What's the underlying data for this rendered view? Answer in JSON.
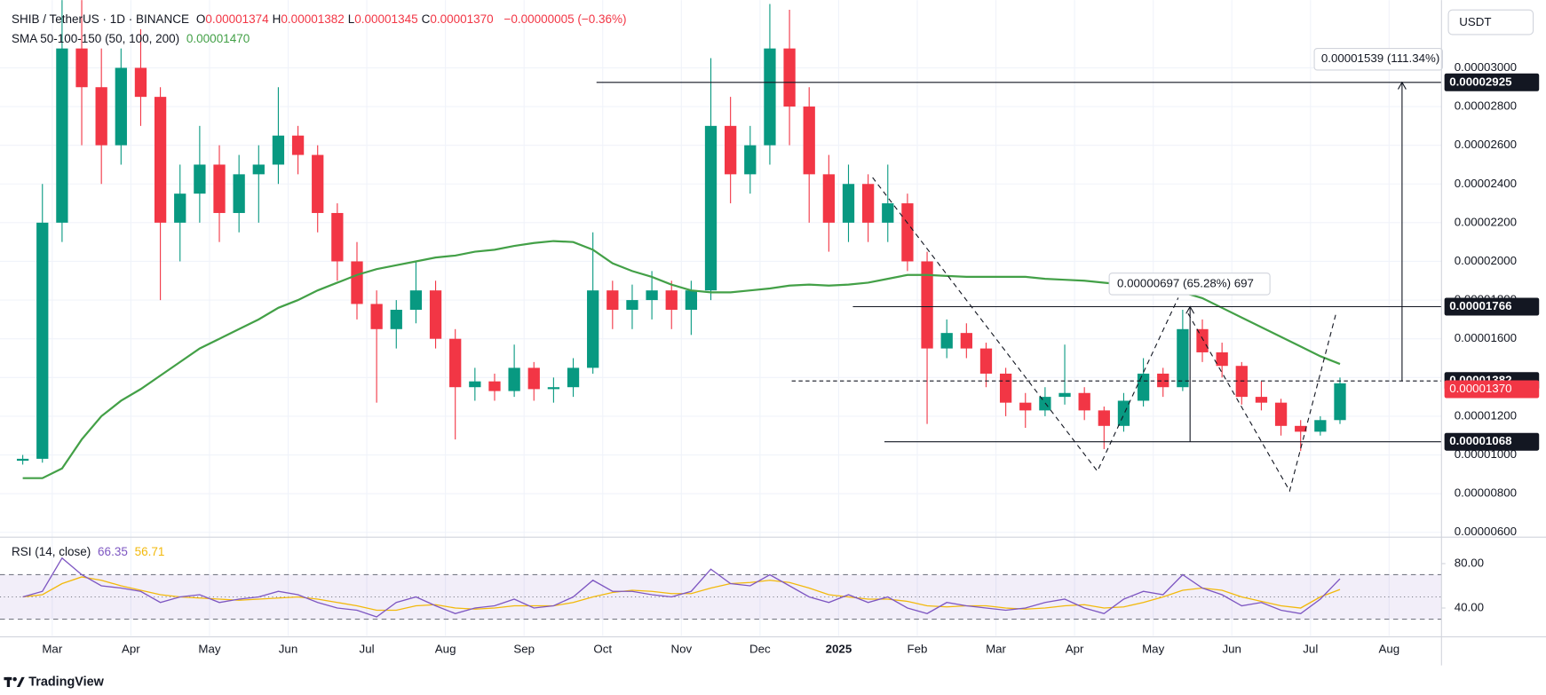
{
  "chart_data": {
    "type": "candlestick",
    "title": "SHIB / TetherUS · 1D · BINANCE",
    "ohlc_header": [
      {
        "label": "O",
        "value": "0.00001374"
      },
      {
        "label": "H",
        "value": "0.00001382"
      },
      {
        "label": "L",
        "value": "0.00001345"
      },
      {
        "label": "C",
        "value": "0.00001370"
      }
    ],
    "change": "−0.00000005 (−0.36%)",
    "currency": "USDT",
    "categories": [
      null,
      null,
      "Mar",
      null,
      null,
      null,
      "Apr",
      null,
      null,
      null,
      "May",
      null,
      null,
      null,
      "Jun",
      null,
      null,
      null,
      "Jul",
      null,
      null,
      null,
      "Aug",
      null,
      null,
      null,
      "Sep",
      null,
      null,
      null,
      "Oct",
      null,
      null,
      null,
      "Nov",
      null,
      null,
      null,
      "Dec",
      null,
      null,
      null,
      "2025",
      null,
      null,
      null,
      "Feb",
      null,
      null,
      null,
      "Mar",
      null,
      null,
      null,
      "Apr",
      null,
      null,
      null,
      "May",
      null,
      null,
      null,
      "Jun",
      null,
      null,
      null,
      "Jul",
      null,
      null,
      null,
      "Aug"
    ],
    "open": [
      9.7e-06,
      9.8e-06,
      2.2e-05,
      3.1e-05,
      2.9e-05,
      2.6e-05,
      3e-05,
      2.85e-05,
      2.2e-05,
      2.35e-05,
      2.5e-05,
      2.25e-05,
      2.45e-05,
      2.5e-05,
      2.65e-05,
      2.55e-05,
      2.25e-05,
      2e-05,
      1.78e-05,
      1.65e-05,
      1.75e-05,
      1.85e-05,
      1.6e-05,
      1.35e-05,
      1.38e-05,
      1.33e-05,
      1.45e-05,
      1.34e-05,
      1.35e-05,
      1.45e-05,
      1.85e-05,
      1.75e-05,
      1.8e-05,
      1.85e-05,
      1.75e-05,
      1.85e-05,
      2.7e-05,
      2.45e-05,
      2.6e-05,
      3.1e-05,
      2.8e-05,
      2.45e-05,
      2.2e-05,
      2.4e-05,
      2.2e-05,
      2.3e-05,
      2e-05,
      1.55e-05,
      1.63e-05,
      1.55e-05,
      1.42e-05,
      1.27e-05,
      1.23e-05,
      1.3e-05,
      1.32e-05,
      1.23e-05,
      1.15e-05,
      1.28e-05,
      1.42e-05,
      1.35e-05,
      1.65e-05,
      1.53e-05,
      1.46e-05,
      1.3e-05,
      1.27e-05,
      1.15e-05,
      1.12e-05,
      1.18e-05,
      null,
      null,
      null
    ],
    "high": [
      1e-05,
      2.4e-05,
      4.5e-05,
      4.5e-05,
      3.1e-05,
      3.1e-05,
      3.2e-05,
      2.9e-05,
      2.5e-05,
      2.7e-05,
      2.6e-05,
      2.55e-05,
      2.6e-05,
      2.9e-05,
      2.7e-05,
      2.6e-05,
      2.3e-05,
      2.1e-05,
      1.85e-05,
      1.8e-05,
      2e-05,
      1.9e-05,
      1.65e-05,
      1.45e-05,
      1.42e-05,
      1.57e-05,
      1.48e-05,
      1.4e-05,
      1.5e-05,
      2.15e-05,
      1.9e-05,
      1.88e-05,
      1.95e-05,
      1.9e-05,
      1.9e-05,
      3.05e-05,
      2.85e-05,
      2.7e-05,
      3.33e-05,
      3.3e-05,
      2.9e-05,
      2.55e-05,
      2.5e-05,
      2.45e-05,
      2.5e-05,
      2.35e-05,
      2.05e-05,
      1.7e-05,
      1.68e-05,
      1.58e-05,
      1.45e-05,
      1.32e-05,
      1.35e-05,
      1.57e-05,
      1.35e-05,
      1.25e-05,
      1.32e-05,
      1.5e-05,
      1.45e-05,
      1.75e-05,
      1.7e-05,
      1.58e-05,
      1.48e-05,
      1.38e-05,
      1.29e-05,
      1.18e-05,
      1.2e-05,
      1.4e-05,
      null,
      null,
      null
    ],
    "low": [
      9.5e-06,
      9.6e-06,
      2.1e-05,
      2.6e-05,
      2.4e-05,
      2.5e-05,
      2.7e-05,
      1.8e-05,
      2e-05,
      2.2e-05,
      2.1e-05,
      2.15e-05,
      2.2e-05,
      2.4e-05,
      2.45e-05,
      2.15e-05,
      1.9e-05,
      1.7e-05,
      1.27e-05,
      1.55e-05,
      1.68e-05,
      1.55e-05,
      1.08e-05,
      1.28e-05,
      1.28e-05,
      1.3e-05,
      1.28e-05,
      1.27e-05,
      1.3e-05,
      1.42e-05,
      1.65e-05,
      1.65e-05,
      1.7e-05,
      1.65e-05,
      1.62e-05,
      1.8e-05,
      2.3e-05,
      2.35e-05,
      2.5e-05,
      2.6e-05,
      2.2e-05,
      2.05e-05,
      2.1e-05,
      2.1e-05,
      2.1e-05,
      1.95e-05,
      1.16e-05,
      1.5e-05,
      1.5e-05,
      1.35e-05,
      1.2e-05,
      1.14e-05,
      1.2e-05,
      1.26e-05,
      1.18e-05,
      1.03e-05,
      1.12e-05,
      1.25e-05,
      1.3e-05,
      1.33e-05,
      1.48e-05,
      1.4e-05,
      1.26e-05,
      1.23e-05,
      1.1e-05,
      1.02e-05,
      1.1e-05,
      1.16e-05,
      null,
      null,
      null
    ],
    "close": [
      9.8e-06,
      2.2e-05,
      3.1e-05,
      2.9e-05,
      2.6e-05,
      3e-05,
      2.85e-05,
      2.2e-05,
      2.35e-05,
      2.5e-05,
      2.25e-05,
      2.45e-05,
      2.5e-05,
      2.65e-05,
      2.55e-05,
      2.25e-05,
      2e-05,
      1.78e-05,
      1.65e-05,
      1.75e-05,
      1.85e-05,
      1.6e-05,
      1.35e-05,
      1.38e-05,
      1.33e-05,
      1.45e-05,
      1.34e-05,
      1.35e-05,
      1.45e-05,
      1.85e-05,
      1.75e-05,
      1.8e-05,
      1.85e-05,
      1.75e-05,
      1.85e-05,
      2.7e-05,
      2.45e-05,
      2.6e-05,
      3.1e-05,
      2.8e-05,
      2.45e-05,
      2.2e-05,
      2.4e-05,
      2.2e-05,
      2.3e-05,
      2e-05,
      1.55e-05,
      1.63e-05,
      1.55e-05,
      1.42e-05,
      1.27e-05,
      1.23e-05,
      1.3e-05,
      1.32e-05,
      1.23e-05,
      1.15e-05,
      1.28e-05,
      1.42e-05,
      1.35e-05,
      1.65e-05,
      1.53e-05,
      1.46e-05,
      1.3e-05,
      1.27e-05,
      1.15e-05,
      1.12e-05,
      1.18e-05,
      1.37e-05,
      null,
      null,
      null
    ],
    "colors": {
      "up": "#089981",
      "down": "#f23645"
    },
    "ylim": [
      5.85e-06,
      3.35e-05
    ],
    "yticks": [
      {
        "value": 3e-05,
        "label": "0.00003000"
      },
      {
        "value": 2.8e-05,
        "label": "0.00002800"
      },
      {
        "value": 2.6e-05,
        "label": "0.00002600"
      },
      {
        "value": 2.4e-05,
        "label": "0.00002400"
      },
      {
        "value": 2.2e-05,
        "label": "0.00002200"
      },
      {
        "value": 2e-05,
        "label": "0.00002000"
      },
      {
        "value": 1.8e-05,
        "label": "0.00001800"
      },
      {
        "value": 1.6e-05,
        "label": "0.00001600"
      },
      {
        "value": 1.4e-05,
        "label": "0.00001400"
      },
      {
        "value": 1.2e-05,
        "label": "0.00001200"
      },
      {
        "value": 1e-05,
        "label": "0.00001000"
      },
      {
        "value": 8e-06,
        "label": "0.00000800"
      },
      {
        "value": 6e-06,
        "label": "0.00000600"
      }
    ],
    "grid": true,
    "overlays": [
      {
        "name": "SMA 50-100-150 (50, 100, 200)",
        "legend_value": "0.00001470",
        "color": "#43a047",
        "values": [
          8.8e-06,
          8.8e-06,
          9.3e-06,
          1.08e-05,
          1.2e-05,
          1.28e-05,
          1.34e-05,
          1.41e-05,
          1.48e-05,
          1.55e-05,
          1.6e-05,
          1.65e-05,
          1.7e-05,
          1.76e-05,
          1.8e-05,
          1.85e-05,
          1.89e-05,
          1.93e-05,
          1.96e-05,
          1.98e-05,
          2e-05,
          2.02e-05,
          2.03e-05,
          2.05e-05,
          2.06e-05,
          2.08e-05,
          2.095e-05,
          2.105e-05,
          2.1e-05,
          2.06e-05,
          1.99e-05,
          1.95e-05,
          1.92e-05,
          1.88e-05,
          1.85e-05,
          1.84e-05,
          1.84e-05,
          1.85e-05,
          1.86e-05,
          1.875e-05,
          1.88e-05,
          1.875e-05,
          1.88e-05,
          1.89e-05,
          1.91e-05,
          1.93e-05,
          1.93e-05,
          1.925e-05,
          1.92e-05,
          1.92e-05,
          1.92e-05,
          1.92e-05,
          1.91e-05,
          1.905e-05,
          1.9e-05,
          1.89e-05,
          1.88e-05,
          1.87e-05,
          1.85e-05,
          1.84e-05,
          1.81e-05,
          1.76e-05,
          1.71e-05,
          1.66e-05,
          1.61e-05,
          1.56e-05,
          1.51e-05,
          1.47e-05,
          null,
          null,
          null
        ]
      }
    ],
    "levels": [
      2.925e-05,
      1.766e-05,
      1.382e-05,
      1.068e-05
    ],
    "last_price": {
      "value": 1.37e-05,
      "label": "0.00001370"
    },
    "annotations": [
      "0.00001539 (111.34%)",
      "0.00000697 (65.28%) 697"
    ],
    "rsi": {
      "name": "RSI (14, close)",
      "legend_value": "66.35",
      "legend_ma": "56.71",
      "color": "#7e57c2",
      "ma_color": "#f2b90c",
      "ylim": [
        15,
        102
      ],
      "yticks": [
        {
          "value": 80,
          "label": "80.00"
        },
        {
          "value": 40,
          "label": "40.00"
        }
      ],
      "bands": [
        70,
        50,
        30
      ],
      "values": [
        50,
        55,
        85,
        70,
        60,
        58,
        55,
        45,
        50,
        52,
        45,
        48,
        50,
        55,
        52,
        45,
        40,
        38,
        32,
        45,
        50,
        42,
        35,
        40,
        42,
        48,
        40,
        42,
        50,
        65,
        55,
        55,
        52,
        50,
        55,
        75,
        62,
        60,
        70,
        60,
        50,
        45,
        52,
        45,
        50,
        40,
        35,
        45,
        42,
        40,
        38,
        40,
        45,
        48,
        40,
        35,
        48,
        55,
        52,
        70,
        58,
        52,
        42,
        45,
        38,
        35,
        48,
        66.35,
        null,
        null,
        null
      ],
      "ma": [
        50,
        52,
        62,
        68,
        65,
        60,
        56,
        52,
        50,
        49,
        48,
        47,
        48,
        49,
        50,
        48,
        45,
        42,
        38,
        38,
        42,
        43,
        40,
        39,
        40,
        42,
        42,
        42,
        45,
        50,
        54,
        56,
        55,
        53,
        53,
        58,
        62,
        63,
        65,
        63,
        58,
        52,
        50,
        48,
        48,
        46,
        42,
        41,
        42,
        42,
        40,
        39,
        40,
        42,
        43,
        40,
        41,
        45,
        50,
        56,
        58,
        56,
        50,
        46,
        42,
        40,
        50,
        56.71,
        null,
        null,
        null
      ]
    }
  },
  "footer": {
    "brand": "TradingView"
  }
}
